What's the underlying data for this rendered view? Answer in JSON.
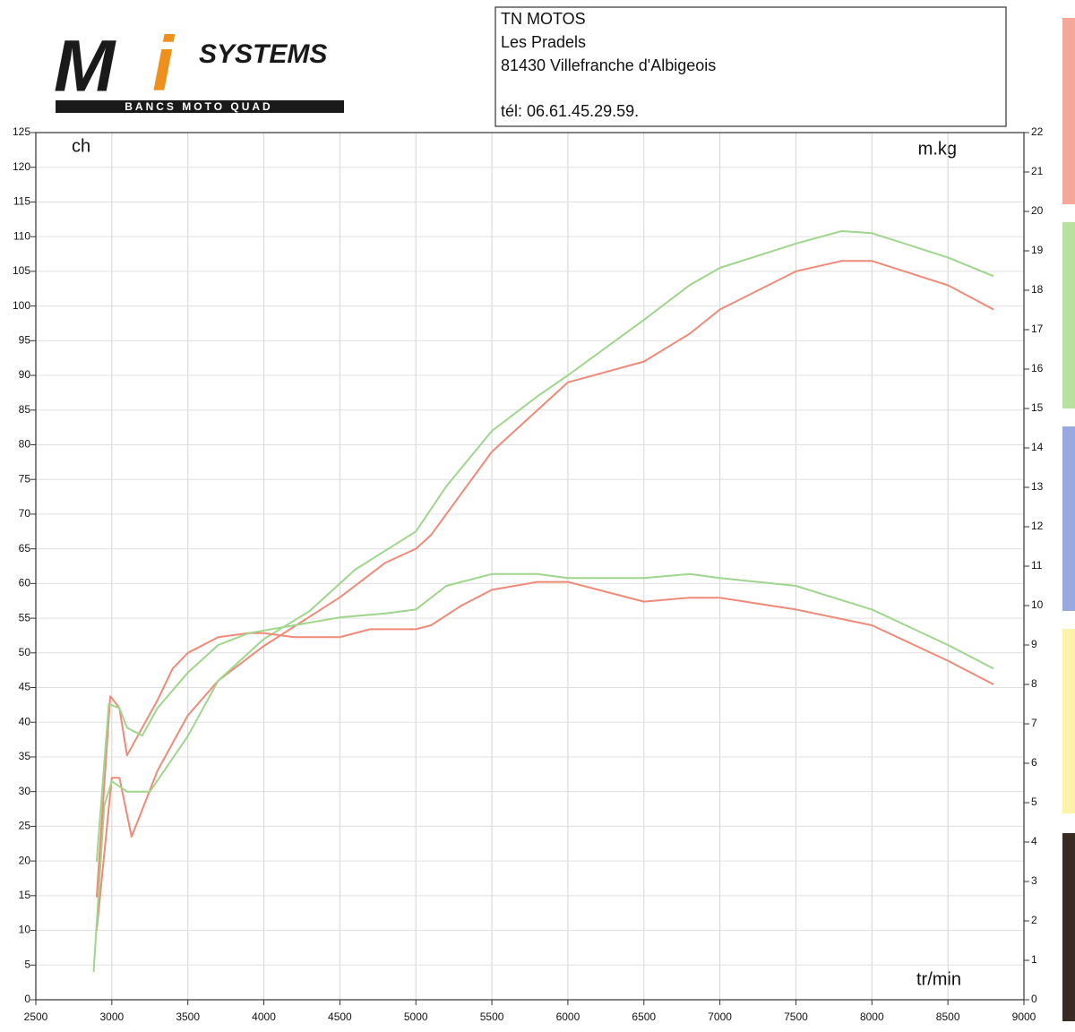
{
  "header": {
    "logo": {
      "m": "M",
      "i": "i",
      "brand": "SYSTEMS",
      "tagline": "BANCS MOTO QUAD"
    },
    "address": [
      "TN MOTOS",
      "Les Pradels",
      "81430 Villefranche d'Albigeois",
      "tél: 06.61.45.29.59."
    ]
  },
  "chart_data": {
    "type": "line",
    "ylabel": "ch",
    "y2label": "m.kg",
    "xlabel": "tr/min",
    "xlim": [
      2500,
      9000
    ],
    "xticks": [
      2500,
      3000,
      3500,
      4000,
      4500,
      5000,
      5500,
      6000,
      6500,
      7000,
      7500,
      8000,
      8500,
      9000
    ],
    "ylim": [
      0,
      125
    ],
    "yticks": [
      0,
      5,
      10,
      15,
      20,
      25,
      30,
      35,
      40,
      45,
      50,
      55,
      60,
      65,
      70,
      75,
      80,
      85,
      90,
      95,
      100,
      105,
      110,
      115,
      120,
      125
    ],
    "y2lim": [
      0,
      22
    ],
    "y2ticks": [
      0,
      1,
      2,
      3,
      4,
      5,
      6,
      7,
      8,
      9,
      10,
      11,
      12,
      13,
      14,
      15,
      16,
      17,
      18,
      19,
      20,
      21,
      22
    ],
    "grid": true,
    "series": [
      {
        "color": "#f08a78",
        "x": [
          2900,
          3000,
          3050,
          3130,
          3300,
          3500,
          3700,
          4000,
          4500,
          4800,
          5000,
          5100,
          5300,
          5500,
          5800,
          6000,
          6500,
          6800,
          7000,
          7500,
          7800,
          8000,
          8500,
          8800
        ],
        "values": [
          10,
          32,
          32,
          23.5,
          33,
          41,
          46,
          51,
          58,
          63,
          65,
          67,
          73,
          79,
          85,
          89,
          92,
          96,
          99.5,
          105,
          106.5,
          106.5,
          103,
          99.5
        ]
      },
      {
        "color": "#9ed68c",
        "x": [
          2880,
          2950,
          3000,
          3100,
          3250,
          3500,
          3700,
          4000,
          4300,
          4600,
          5000,
          5200,
          5500,
          5800,
          6000,
          6500,
          6800,
          7000,
          7500,
          7800,
          8000,
          8500,
          8800
        ],
        "values": [
          4,
          28,
          31.5,
          30,
          30,
          38,
          46,
          52,
          56,
          62,
          67.5,
          74,
          82,
          87,
          90,
          98,
          103,
          105.5,
          109,
          110.8,
          110.5,
          107,
          104.3
        ]
      },
      {
        "color": "#f08a78",
        "axis": "y2",
        "x": [
          2900,
          2990,
          3050,
          3100,
          3300,
          3400,
          3500,
          3700,
          3900,
          4000,
          4200,
          4500,
          4700,
          5000,
          5100,
          5300,
          5500,
          5800,
          6000,
          6200,
          6500,
          6800,
          7000,
          7500,
          8000,
          8500,
          8800
        ],
        "values": [
          2.6,
          7.7,
          7.4,
          6.2,
          7.6,
          8.4,
          8.8,
          9.2,
          9.3,
          9.3,
          9.2,
          9.2,
          9.4,
          9.4,
          9.5,
          10.0,
          10.4,
          10.6,
          10.6,
          10.4,
          10.1,
          10.2,
          10.2,
          9.9,
          9.5,
          8.6,
          8.0
        ]
      },
      {
        "color": "#9ed68c",
        "axis": "y2",
        "x": [
          2900,
          2980,
          3050,
          3100,
          3200,
          3300,
          3500,
          3700,
          3900,
          4200,
          4500,
          4800,
          5000,
          5200,
          5500,
          5800,
          6000,
          6500,
          6800,
          7000,
          7500,
          8000,
          8500,
          8800
        ],
        "values": [
          3.5,
          7.5,
          7.4,
          6.9,
          6.7,
          7.4,
          8.3,
          9.0,
          9.3,
          9.5,
          9.7,
          9.8,
          9.9,
          10.5,
          10.8,
          10.8,
          10.7,
          10.7,
          10.8,
          10.7,
          10.5,
          9.9,
          9.0,
          8.4
        ]
      }
    ]
  }
}
